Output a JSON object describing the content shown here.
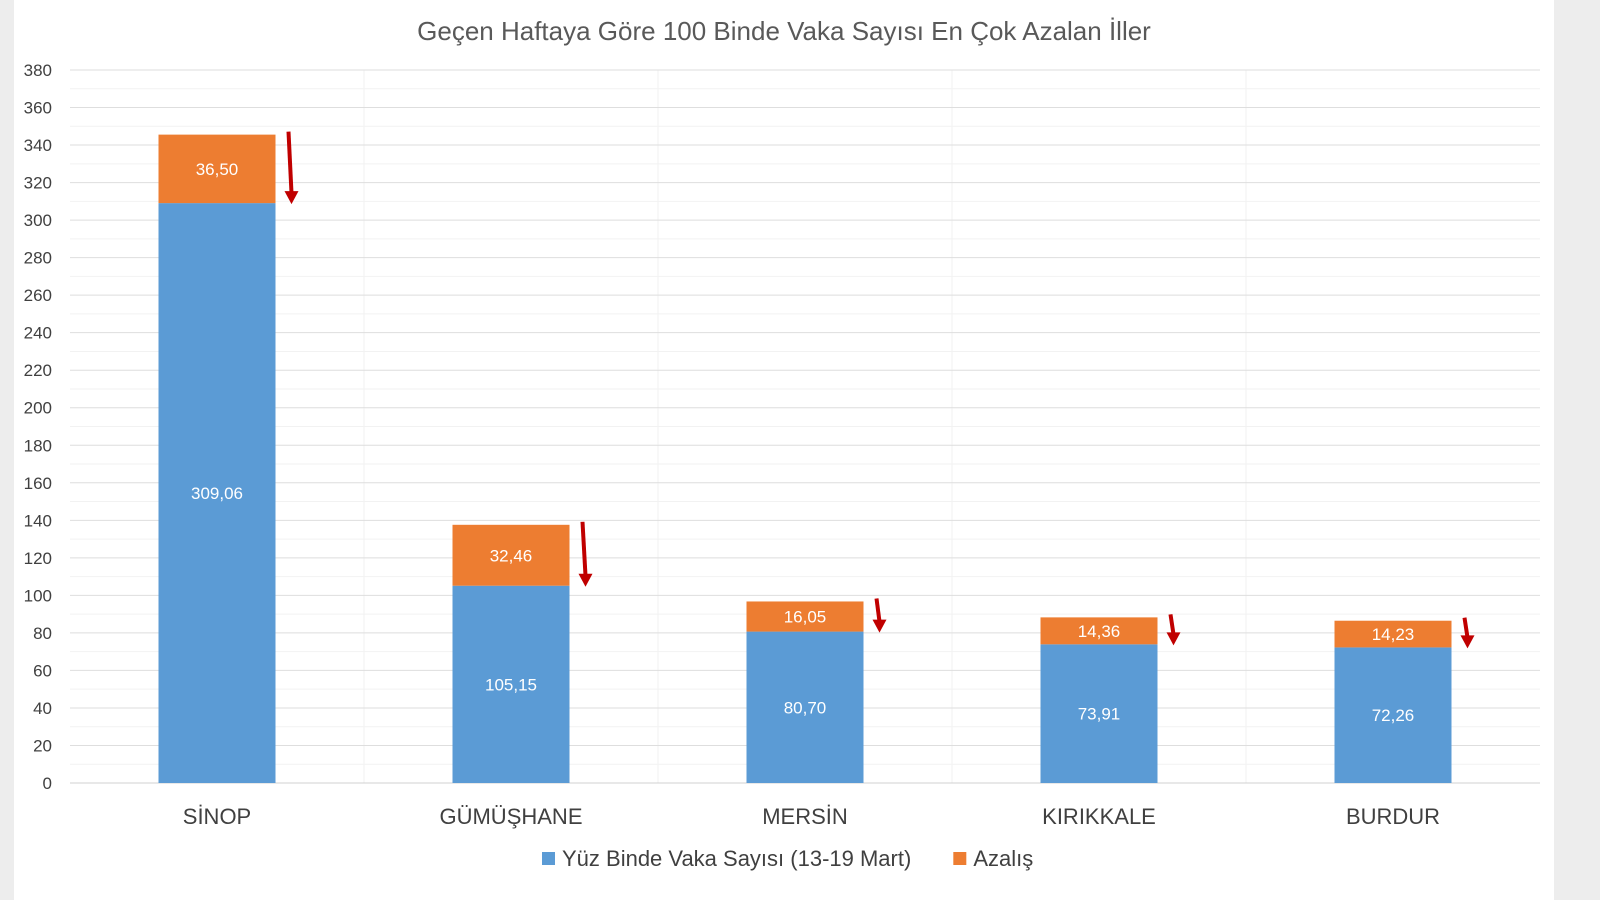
{
  "chart_data": {
    "type": "bar",
    "stacked": true,
    "title": "Geçen Haftaya Göre 100 Binde Vaka Sayısı En Çok Azalan İller",
    "xlabel": "",
    "ylabel": "",
    "ylim": [
      0,
      380
    ],
    "yticks": [
      0,
      20,
      40,
      60,
      80,
      100,
      120,
      140,
      160,
      180,
      200,
      220,
      240,
      260,
      280,
      300,
      320,
      340,
      360,
      380
    ],
    "grid": true,
    "legend": "bottom",
    "categories": [
      "SİNOP",
      "GÜMÜŞHANE",
      "MERSİN",
      "KIRIKKALE",
      "BURDUR"
    ],
    "series": [
      {
        "name": "Yüz Binde Vaka Sayısı (13-19 Mart)",
        "color": "#5b9bd5",
        "values": [
          309.06,
          105.15,
          80.7,
          73.91,
          72.26
        ],
        "labels": [
          "309,06",
          "105,15",
          "80,70",
          "73,91",
          "72,26"
        ]
      },
      {
        "name": "Azalış",
        "color": "#ed7d31",
        "values": [
          36.5,
          32.46,
          16.05,
          14.36,
          14.23
        ],
        "labels": [
          "36,50",
          "32,46",
          "16,05",
          "14,36",
          "14,23"
        ]
      }
    ],
    "annotations": "red downward arrow beside each Azalış segment",
    "arrow_color": "#c00000"
  }
}
